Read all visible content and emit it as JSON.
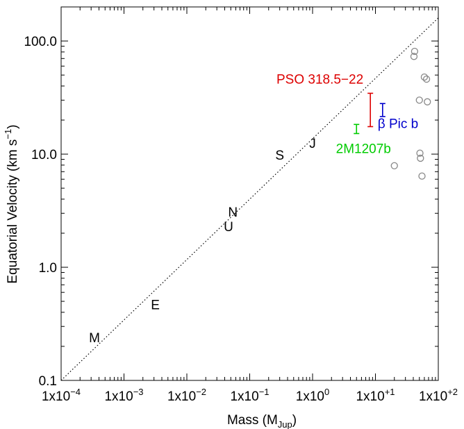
{
  "chart_data": {
    "type": "scatter",
    "x_scale": "log",
    "y_scale": "log",
    "xlim": [
      0.0001,
      100
    ],
    "ylim": [
      0.1,
      200
    ],
    "grid": false,
    "xlabel": {
      "main": "Mass (M",
      "sub": "Jup",
      "close": ")"
    },
    "ylabel": {
      "main": "Equatorial Velocity (km s",
      "sup": "−1",
      "close": ")"
    },
    "x_ticks": [
      {
        "value": 0.0001,
        "base": "1x10",
        "exp": "−4"
      },
      {
        "value": 0.001,
        "base": "1x10",
        "exp": "−3"
      },
      {
        "value": 0.01,
        "base": "1x10",
        "exp": "−2"
      },
      {
        "value": 0.1,
        "base": "1x10",
        "exp": "−1"
      },
      {
        "value": 1,
        "base": "1x10",
        "exp": "0"
      },
      {
        "value": 10,
        "base": "1x10",
        "exp": "+1"
      },
      {
        "value": 100,
        "base": "1x10",
        "exp": "+2"
      }
    ],
    "y_ticks": [
      {
        "value": 0.1,
        "label": "0.1"
      },
      {
        "value": 1,
        "label": "1.0"
      },
      {
        "value": 10,
        "label": "10.0"
      },
      {
        "value": 100,
        "label": "100.0"
      }
    ],
    "trend_line": {
      "style": "dotted",
      "color": "#000000",
      "from": [
        0.0001,
        0.1
      ],
      "to": [
        100,
        160
      ]
    },
    "planets": [
      {
        "label": "M",
        "mass": 0.00034,
        "velocity": 0.24
      },
      {
        "label": "E",
        "mass": 0.00315,
        "velocity": 0.47
      },
      {
        "label": "U",
        "mass": 0.046,
        "velocity": 2.3
      },
      {
        "label": "N",
        "mass": 0.054,
        "velocity": 3.1
      },
      {
        "label": "S",
        "mass": 0.3,
        "velocity": 9.9
      },
      {
        "label": "J",
        "mass": 1.0,
        "velocity": 12.5
      }
    ],
    "highlighted": [
      {
        "name": "PSO 318.5−22",
        "color": "#dd0000",
        "mass": 8.3,
        "v_low": 17.5,
        "v_high": 34.5
      },
      {
        "name": "β Pic b",
        "color": "#0000cc",
        "mass": 13,
        "v_low": 21.5,
        "v_high": 28
      },
      {
        "name": "2M1207b",
        "color": "#00cc00",
        "mass": 5,
        "v_low": 15.2,
        "v_high": 18.3
      }
    ],
    "brown_dwarfs": {
      "color": "#888888",
      "points": [
        [
          42,
          81
        ],
        [
          41,
          73
        ],
        [
          60,
          48
        ],
        [
          65,
          46
        ],
        [
          50,
          30
        ],
        [
          67,
          29
        ],
        [
          51,
          10.2
        ],
        [
          52,
          9.2
        ],
        [
          20,
          7.9
        ],
        [
          55,
          6.4
        ]
      ]
    }
  }
}
